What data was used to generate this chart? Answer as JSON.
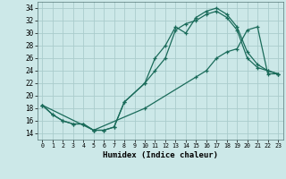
{
  "title": "",
  "xlabel": "Humidex (Indice chaleur)",
  "bg_color": "#cce8e8",
  "grid_color": "#aacccc",
  "line_color": "#1a6b5a",
  "xlim": [
    -0.5,
    23.5
  ],
  "ylim": [
    13.0,
    35.0
  ],
  "yticks": [
    14,
    16,
    18,
    20,
    22,
    24,
    26,
    28,
    30,
    32,
    34
  ],
  "xticks": [
    0,
    1,
    2,
    3,
    4,
    5,
    6,
    7,
    8,
    9,
    10,
    11,
    12,
    13,
    14,
    15,
    16,
    17,
    18,
    19,
    20,
    21,
    22,
    23
  ],
  "line1_x": [
    0,
    1,
    2,
    3,
    4,
    5,
    6,
    7,
    8,
    10,
    11,
    12,
    13,
    14,
    15,
    16,
    17,
    18,
    19,
    20,
    21,
    22,
    23
  ],
  "line1_y": [
    18.5,
    17,
    16,
    15.5,
    15.5,
    14.5,
    14.5,
    15,
    19,
    22,
    26,
    28,
    31,
    30,
    32.5,
    33.5,
    34,
    33,
    31,
    27,
    25,
    24,
    23.5
  ],
  "line2_x": [
    0,
    1,
    2,
    3,
    4,
    5,
    6,
    7,
    8,
    10,
    11,
    12,
    13,
    14,
    15,
    16,
    17,
    18,
    19,
    20,
    21,
    22,
    23
  ],
  "line2_y": [
    18.5,
    17,
    16,
    15.5,
    15.5,
    14.5,
    14.5,
    15,
    19,
    22,
    24,
    26,
    30.5,
    31.5,
    32,
    33,
    33.5,
    32.5,
    30.5,
    26,
    24.5,
    24,
    23.5
  ],
  "line3_x": [
    0,
    5,
    10,
    15,
    16,
    17,
    18,
    19,
    20,
    21,
    22,
    23
  ],
  "line3_y": [
    18.5,
    14.5,
    18,
    23,
    24,
    26,
    27,
    27.5,
    30.5,
    31,
    23.5,
    23.5
  ]
}
